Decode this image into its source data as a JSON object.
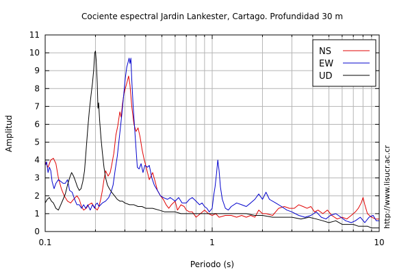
{
  "chart_data": {
    "type": "line",
    "title": "Cociente espectral Jardin Lankester, Cartago. Profundidad 30 m",
    "xlabel": "Periodo (s)",
    "ylabel": "Amplitud",
    "xscale": "log",
    "xlim": [
      0.1,
      10
    ],
    "ylim": [
      0,
      11
    ],
    "x_tick_labels": [
      {
        "value": 0.1,
        "label": "0.1"
      },
      {
        "value": 1,
        "label": "1"
      },
      {
        "value": 10,
        "label": "10"
      }
    ],
    "y_ticks": [
      0,
      1,
      2,
      3,
      4,
      5,
      6,
      7,
      8,
      9,
      10,
      11
    ],
    "grid": true,
    "legend_position": "top-right",
    "credit": "http://www.lisucr.ac.cr",
    "series": [
      {
        "name": "NS",
        "color": "#e00000",
        "points": [
          [
            0.1,
            3.9
          ],
          [
            0.104,
            3.6
          ],
          [
            0.108,
            4.0
          ],
          [
            0.112,
            4.1
          ],
          [
            0.116,
            3.8
          ],
          [
            0.12,
            3.0
          ],
          [
            0.125,
            2.4
          ],
          [
            0.13,
            2.0
          ],
          [
            0.136,
            1.7
          ],
          [
            0.142,
            1.6
          ],
          [
            0.148,
            1.8
          ],
          [
            0.155,
            2.0
          ],
          [
            0.16,
            1.8
          ],
          [
            0.165,
            1.4
          ],
          [
            0.17,
            1.2
          ],
          [
            0.176,
            1.3
          ],
          [
            0.182,
            1.5
          ],
          [
            0.19,
            1.6
          ],
          [
            0.196,
            1.4
          ],
          [
            0.2,
            1.3
          ],
          [
            0.205,
            1.2
          ],
          [
            0.21,
            1.4
          ],
          [
            0.215,
            1.8
          ],
          [
            0.22,
            2.3
          ],
          [
            0.225,
            2.9
          ],
          [
            0.23,
            3.4
          ],
          [
            0.238,
            3.1
          ],
          [
            0.245,
            3.3
          ],
          [
            0.25,
            3.7
          ],
          [
            0.258,
            4.4
          ],
          [
            0.265,
            5.4
          ],
          [
            0.272,
            5.9
          ],
          [
            0.28,
            6.7
          ],
          [
            0.285,
            6.4
          ],
          [
            0.29,
            7.1
          ],
          [
            0.296,
            7.7
          ],
          [
            0.302,
            8.0
          ],
          [
            0.31,
            8.4
          ],
          [
            0.316,
            8.7
          ],
          [
            0.322,
            8.2
          ],
          [
            0.33,
            7.0
          ],
          [
            0.34,
            6.0
          ],
          [
            0.35,
            5.6
          ],
          [
            0.36,
            5.8
          ],
          [
            0.37,
            5.3
          ],
          [
            0.38,
            4.6
          ],
          [
            0.39,
            4.1
          ],
          [
            0.4,
            3.7
          ],
          [
            0.41,
            3.3
          ],
          [
            0.42,
            2.9
          ],
          [
            0.43,
            3.1
          ],
          [
            0.44,
            3.3
          ],
          [
            0.455,
            2.8
          ],
          [
            0.47,
            2.3
          ],
          [
            0.49,
            2.0
          ],
          [
            0.51,
            1.8
          ],
          [
            0.53,
            1.5
          ],
          [
            0.55,
            1.3
          ],
          [
            0.57,
            1.5
          ],
          [
            0.6,
            1.7
          ],
          [
            0.62,
            1.2
          ],
          [
            0.65,
            1.5
          ],
          [
            0.68,
            1.4
          ],
          [
            0.7,
            1.2
          ],
          [
            0.73,
            1.1
          ],
          [
            0.76,
            1.1
          ],
          [
            0.8,
            0.8
          ],
          [
            0.85,
            1.0
          ],
          [
            0.9,
            1.2
          ],
          [
            0.95,
            1.0
          ],
          [
            1.0,
            0.9
          ],
          [
            1.05,
            1.0
          ],
          [
            1.1,
            0.8
          ],
          [
            1.2,
            0.9
          ],
          [
            1.3,
            0.9
          ],
          [
            1.4,
            0.8
          ],
          [
            1.5,
            0.9
          ],
          [
            1.6,
            0.8
          ],
          [
            1.7,
            0.9
          ],
          [
            1.8,
            0.8
          ],
          [
            1.9,
            1.2
          ],
          [
            2.0,
            1.0
          ],
          [
            2.1,
            1.0
          ],
          [
            2.3,
            0.9
          ],
          [
            2.5,
            1.3
          ],
          [
            2.7,
            1.4
          ],
          [
            2.9,
            1.3
          ],
          [
            3.1,
            1.3
          ],
          [
            3.3,
            1.5
          ],
          [
            3.5,
            1.4
          ],
          [
            3.7,
            1.3
          ],
          [
            3.9,
            1.4
          ],
          [
            4.1,
            1.1
          ],
          [
            4.3,
            1.2
          ],
          [
            4.6,
            1.0
          ],
          [
            4.9,
            1.2
          ],
          [
            5.2,
            0.9
          ],
          [
            5.6,
            0.7
          ],
          [
            6.0,
            0.8
          ],
          [
            6.4,
            0.7
          ],
          [
            6.8,
            0.9
          ],
          [
            7.2,
            1.1
          ],
          [
            7.5,
            1.3
          ],
          [
            7.8,
            1.6
          ],
          [
            8.0,
            1.9
          ],
          [
            8.2,
            1.5
          ],
          [
            8.5,
            1.0
          ],
          [
            9.0,
            0.8
          ],
          [
            9.5,
            0.7
          ],
          [
            10.0,
            0.7
          ]
        ]
      },
      {
        "name": "EW",
        "color": "#0000cc",
        "points": [
          [
            0.1,
            3.7
          ],
          [
            0.102,
            3.9
          ],
          [
            0.104,
            3.3
          ],
          [
            0.106,
            3.6
          ],
          [
            0.108,
            3.4
          ],
          [
            0.11,
            2.8
          ],
          [
            0.113,
            2.4
          ],
          [
            0.116,
            2.7
          ],
          [
            0.12,
            2.9
          ],
          [
            0.124,
            2.8
          ],
          [
            0.128,
            2.7
          ],
          [
            0.132,
            2.7
          ],
          [
            0.136,
            2.9
          ],
          [
            0.14,
            2.3
          ],
          [
            0.145,
            2.2
          ],
          [
            0.15,
            1.8
          ],
          [
            0.155,
            1.5
          ],
          [
            0.16,
            1.5
          ],
          [
            0.165,
            1.3
          ],
          [
            0.17,
            1.5
          ],
          [
            0.175,
            1.3
          ],
          [
            0.18,
            1.5
          ],
          [
            0.186,
            1.2
          ],
          [
            0.192,
            1.5
          ],
          [
            0.198,
            1.3
          ],
          [
            0.2,
            1.5
          ],
          [
            0.205,
            1.6
          ],
          [
            0.21,
            1.4
          ],
          [
            0.215,
            1.5
          ],
          [
            0.22,
            1.6
          ],
          [
            0.23,
            1.7
          ],
          [
            0.24,
            1.9
          ],
          [
            0.248,
            2.2
          ],
          [
            0.255,
            2.6
          ],
          [
            0.262,
            3.4
          ],
          [
            0.27,
            4.2
          ],
          [
            0.276,
            5.0
          ],
          [
            0.282,
            5.8
          ],
          [
            0.288,
            6.6
          ],
          [
            0.295,
            7.6
          ],
          [
            0.302,
            8.6
          ],
          [
            0.308,
            9.2
          ],
          [
            0.314,
            9.5
          ],
          [
            0.318,
            9.7
          ],
          [
            0.322,
            9.4
          ],
          [
            0.326,
            9.7
          ],
          [
            0.33,
            8.5
          ],
          [
            0.336,
            7.1
          ],
          [
            0.342,
            6.0
          ],
          [
            0.35,
            4.6
          ],
          [
            0.356,
            3.6
          ],
          [
            0.365,
            3.5
          ],
          [
            0.375,
            3.8
          ],
          [
            0.385,
            3.3
          ],
          [
            0.395,
            3.7
          ],
          [
            0.41,
            3.6
          ],
          [
            0.42,
            3.7
          ],
          [
            0.435,
            3.0
          ],
          [
            0.45,
            2.6
          ],
          [
            0.47,
            2.3
          ],
          [
            0.49,
            2.0
          ],
          [
            0.51,
            1.9
          ],
          [
            0.54,
            1.8
          ],
          [
            0.56,
            1.9
          ],
          [
            0.58,
            1.8
          ],
          [
            0.6,
            1.7
          ],
          [
            0.63,
            1.9
          ],
          [
            0.66,
            1.6
          ],
          [
            0.7,
            1.6
          ],
          [
            0.73,
            1.8
          ],
          [
            0.76,
            1.9
          ],
          [
            0.8,
            1.7
          ],
          [
            0.84,
            1.5
          ],
          [
            0.87,
            1.6
          ],
          [
            0.9,
            1.4
          ],
          [
            0.93,
            1.3
          ],
          [
            0.96,
            1.1
          ],
          [
            0.98,
            1.2
          ],
          [
            1.0,
            1.3
          ],
          [
            1.02,
            2.0
          ],
          [
            1.04,
            2.5
          ],
          [
            1.06,
            3.2
          ],
          [
            1.08,
            4.0
          ],
          [
            1.1,
            3.4
          ],
          [
            1.12,
            2.5
          ],
          [
            1.15,
            1.8
          ],
          [
            1.2,
            1.3
          ],
          [
            1.25,
            1.2
          ],
          [
            1.3,
            1.4
          ],
          [
            1.4,
            1.6
          ],
          [
            1.5,
            1.5
          ],
          [
            1.6,
            1.4
          ],
          [
            1.7,
            1.6
          ],
          [
            1.8,
            1.8
          ],
          [
            1.9,
            2.1
          ],
          [
            2.0,
            1.8
          ],
          [
            2.1,
            2.2
          ],
          [
            2.2,
            1.8
          ],
          [
            2.4,
            1.6
          ],
          [
            2.6,
            1.4
          ],
          [
            2.8,
            1.2
          ],
          [
            3.0,
            1.1
          ],
          [
            3.3,
            0.9
          ],
          [
            3.6,
            0.8
          ],
          [
            3.9,
            0.9
          ],
          [
            4.2,
            1.1
          ],
          [
            4.5,
            0.8
          ],
          [
            4.8,
            0.7
          ],
          [
            5.1,
            0.9
          ],
          [
            5.5,
            1.0
          ],
          [
            5.9,
            0.8
          ],
          [
            6.3,
            0.6
          ],
          [
            6.8,
            0.5
          ],
          [
            7.2,
            0.6
          ],
          [
            7.7,
            0.8
          ],
          [
            8.2,
            0.5
          ],
          [
            8.7,
            0.8
          ],
          [
            9.2,
            0.9
          ],
          [
            9.6,
            0.6
          ],
          [
            10.0,
            0.6
          ]
        ]
      },
      {
        "name": "UD",
        "color": "#000000",
        "points": [
          [
            0.1,
            1.6
          ],
          [
            0.103,
            1.8
          ],
          [
            0.106,
            1.9
          ],
          [
            0.109,
            1.7
          ],
          [
            0.112,
            1.6
          ],
          [
            0.116,
            1.3
          ],
          [
            0.12,
            1.2
          ],
          [
            0.124,
            1.5
          ],
          [
            0.128,
            1.8
          ],
          [
            0.132,
            2.1
          ],
          [
            0.136,
            2.6
          ],
          [
            0.14,
            3.0
          ],
          [
            0.144,
            3.3
          ],
          [
            0.148,
            3.1
          ],
          [
            0.152,
            2.8
          ],
          [
            0.156,
            2.5
          ],
          [
            0.16,
            2.3
          ],
          [
            0.164,
            2.4
          ],
          [
            0.168,
            2.8
          ],
          [
            0.172,
            3.4
          ],
          [
            0.176,
            4.6
          ],
          [
            0.18,
            5.8
          ],
          [
            0.184,
            6.8
          ],
          [
            0.188,
            7.6
          ],
          [
            0.192,
            8.3
          ],
          [
            0.195,
            9.0
          ],
          [
            0.198,
            10.0
          ],
          [
            0.2,
            10.1
          ],
          [
            0.202,
            9.6
          ],
          [
            0.205,
            8.3
          ],
          [
            0.207,
            6.9
          ],
          [
            0.209,
            7.2
          ],
          [
            0.212,
            6.2
          ],
          [
            0.216,
            5.2
          ],
          [
            0.22,
            4.4
          ],
          [
            0.225,
            3.6
          ],
          [
            0.23,
            3.0
          ],
          [
            0.236,
            2.6
          ],
          [
            0.242,
            2.4
          ],
          [
            0.25,
            2.2
          ],
          [
            0.26,
            2.0
          ],
          [
            0.27,
            1.8
          ],
          [
            0.28,
            1.7
          ],
          [
            0.29,
            1.7
          ],
          [
            0.3,
            1.6
          ],
          [
            0.32,
            1.5
          ],
          [
            0.34,
            1.5
          ],
          [
            0.36,
            1.4
          ],
          [
            0.38,
            1.4
          ],
          [
            0.4,
            1.3
          ],
          [
            0.44,
            1.3
          ],
          [
            0.48,
            1.2
          ],
          [
            0.52,
            1.1
          ],
          [
            0.56,
            1.1
          ],
          [
            0.6,
            1.1
          ],
          [
            0.65,
            1.0
          ],
          [
            0.7,
            1.0
          ],
          [
            0.8,
            1.0
          ],
          [
            0.9,
            1.0
          ],
          [
            1.0,
            1.0
          ],
          [
            1.2,
            1.0
          ],
          [
            1.4,
            1.0
          ],
          [
            1.6,
            1.0
          ],
          [
            1.8,
            0.9
          ],
          [
            2.0,
            0.9
          ],
          [
            2.3,
            0.8
          ],
          [
            2.6,
            0.8
          ],
          [
            3.0,
            0.8
          ],
          [
            3.4,
            0.7
          ],
          [
            3.8,
            0.8
          ],
          [
            4.2,
            0.7
          ],
          [
            4.6,
            0.6
          ],
          [
            5.0,
            0.5
          ],
          [
            5.5,
            0.6
          ],
          [
            6.0,
            0.4
          ],
          [
            6.5,
            0.4
          ],
          [
            7.0,
            0.4
          ],
          [
            7.5,
            0.3
          ],
          [
            8.0,
            0.3
          ],
          [
            8.5,
            0.3
          ],
          [
            9.0,
            0.2
          ],
          [
            9.5,
            0.2
          ],
          [
            10.0,
            0.2
          ]
        ]
      }
    ]
  }
}
